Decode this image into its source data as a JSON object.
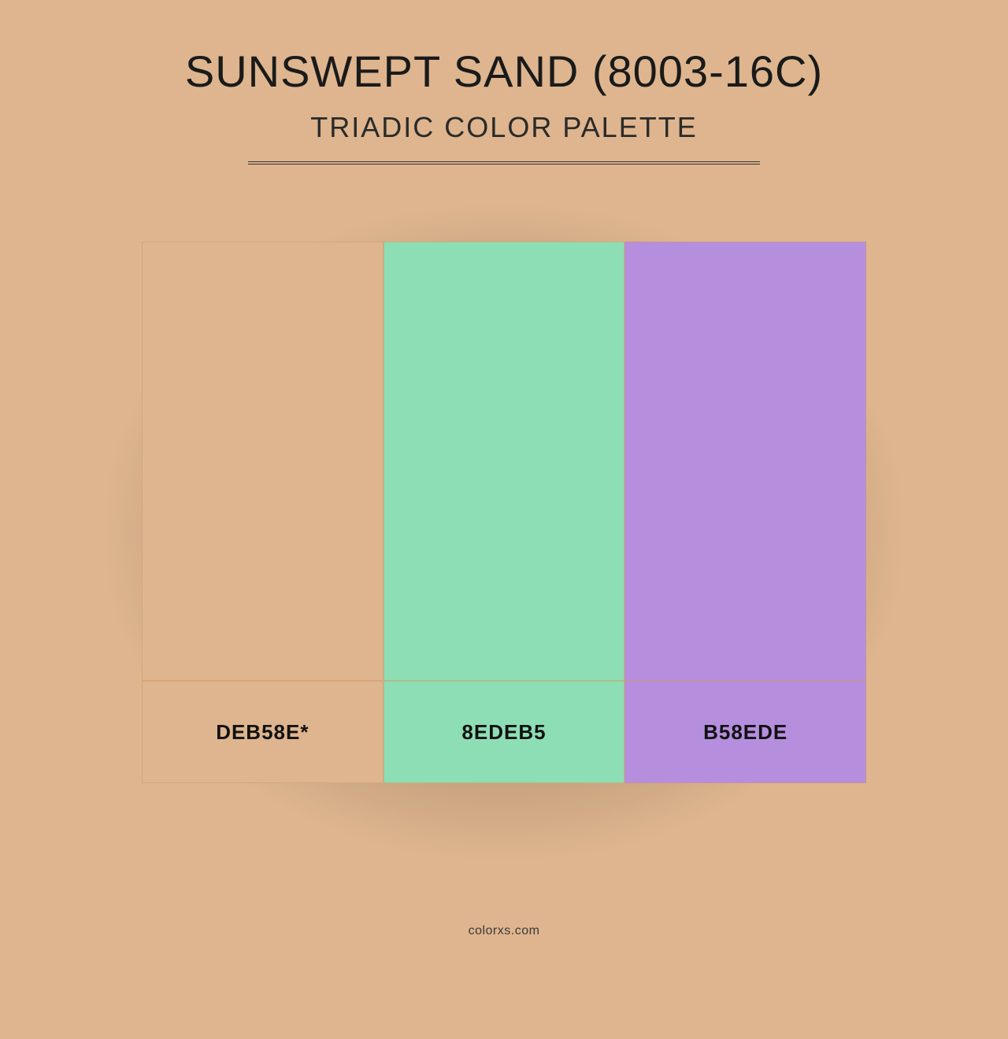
{
  "background_color": "#deb58e",
  "title": "SUNSWEPT SAND (8003-16C)",
  "subtitle": "TRIADIC COLOR PALETTE",
  "title_fontsize": 56,
  "subtitle_fontsize": 36,
  "divider_color": "#333333",
  "divider_width": 650,
  "palette": {
    "type": "infographic",
    "layout": "horizontal-columns",
    "column_count": 3,
    "swatch_height": 558,
    "label_height": 130,
    "label_fontsize": 26,
    "label_fontweight": 700,
    "border_color": "#d29664",
    "shadow_color": "rgba(0,0,0,0.25)",
    "columns": [
      {
        "color": "#deb58e",
        "label": "DEB58E*"
      },
      {
        "color": "#8edeb5",
        "label": "8EDEB5"
      },
      {
        "color": "#b58ede",
        "label": "B58EDE"
      }
    ]
  },
  "footer": "colorxs.com",
  "footer_fontsize": 16,
  "footer_color": "#3a3a3a"
}
